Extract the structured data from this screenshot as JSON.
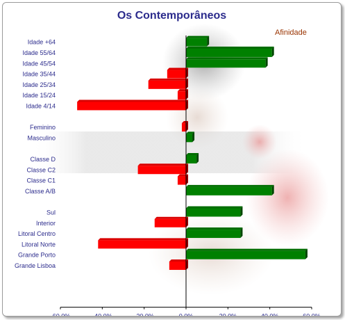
{
  "chart_data": {
    "type": "bar",
    "orientation": "horizontal",
    "title": "Os Contemporâneos",
    "legend": "Afinidade",
    "legend_position": "top-right",
    "xlim": [
      -60,
      60
    ],
    "x_ticks": [
      "-60.0%",
      "-40.0%",
      "-20.0%",
      "0.0%",
      "20.0%",
      "40.0%",
      "60.0%"
    ],
    "positive_color": "#008000",
    "negative_color": "#ff0000",
    "categories": [
      "Idade +64",
      "Idade 55/64",
      "Idade 45/54",
      "Idade 35/44",
      "Idade 25/34",
      "Idade 15/24",
      "Idade 4/14",
      "",
      "Feminino",
      "Masculino",
      "",
      "Classe D",
      "Classe C2",
      "Classe C1",
      "Classe A/B",
      "",
      "Sul",
      "Interior",
      "Litoral Centro",
      "Litoral Norte",
      "Grande Porto",
      "Grande Lisboa"
    ],
    "values": [
      10,
      41,
      38,
      -9,
      -18,
      -4,
      -52,
      null,
      -2,
      3,
      null,
      5,
      -23,
      -4,
      41,
      null,
      26,
      -15,
      26,
      -42,
      57,
      -8
    ]
  }
}
